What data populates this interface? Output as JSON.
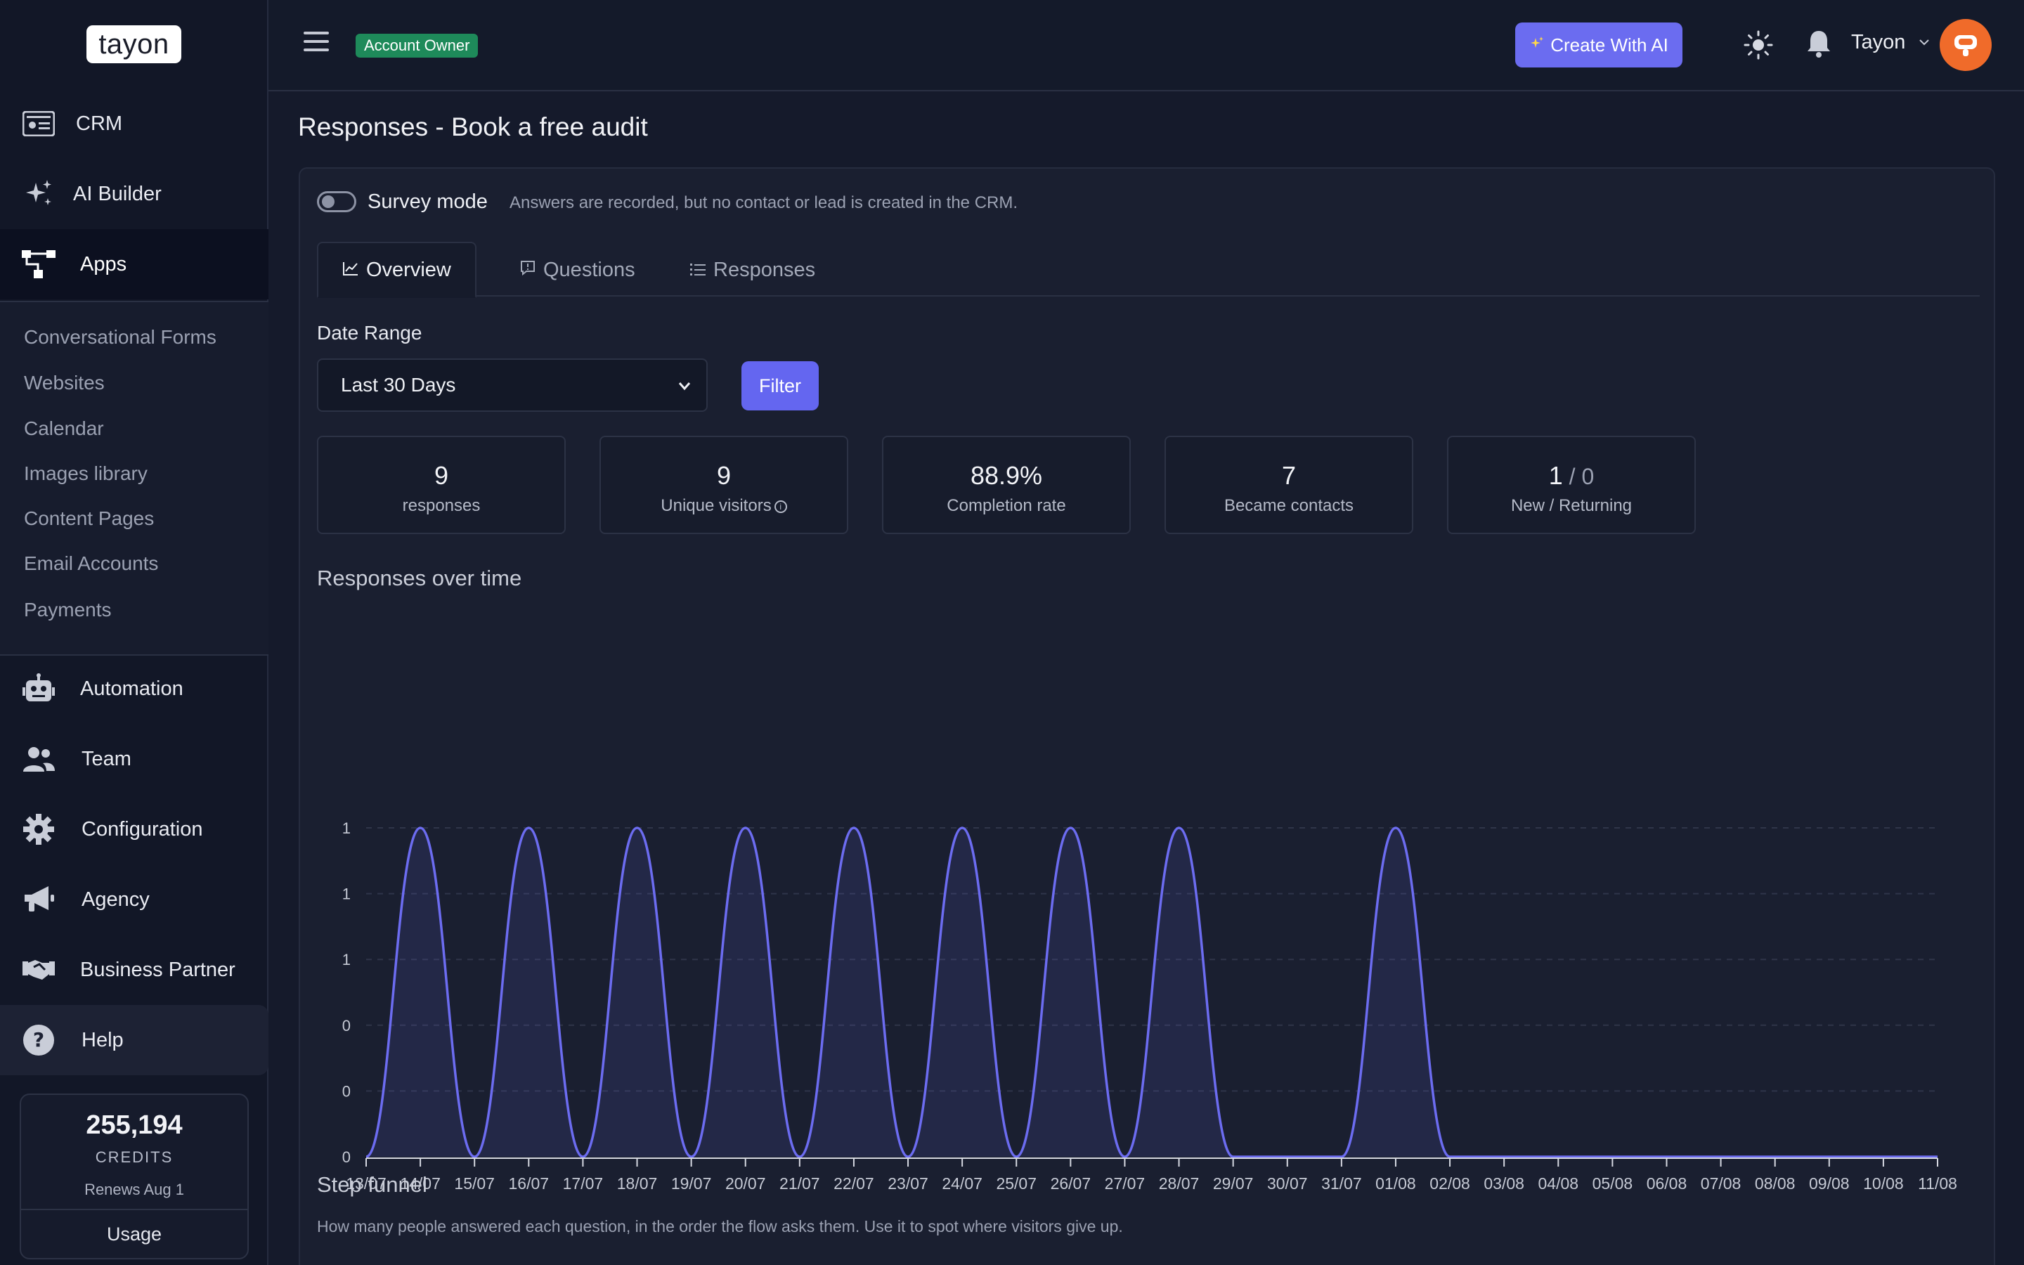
{
  "app": {
    "logo_text": "tayon"
  },
  "sidebar": {
    "items": [
      {
        "label": "CRM",
        "icon": "id-card-icon"
      },
      {
        "label": "AI Builder",
        "icon": "sparkles-icon"
      },
      {
        "label": "Apps",
        "icon": "sitemap-icon",
        "active": true
      },
      {
        "label": "Automation",
        "icon": "robot-icon"
      },
      {
        "label": "Team",
        "icon": "users-icon"
      },
      {
        "label": "Configuration",
        "icon": "gear-icon"
      },
      {
        "label": "Agency",
        "icon": "megaphone-icon"
      },
      {
        "label": "Business Partner",
        "icon": "handshake-icon"
      },
      {
        "label": "Help",
        "icon": "question-circle-icon"
      }
    ],
    "apps_submenu": [
      "Conversational Forms",
      "Websites",
      "Calendar",
      "Images library",
      "Content Pages",
      "Email Accounts",
      "Payments"
    ],
    "credits": {
      "value": "255,194",
      "label": "CREDITS",
      "renews": "Renews Aug 1",
      "usage_label": "Usage"
    }
  },
  "topbar": {
    "role_badge": "Account Owner",
    "create_ai_label": "Create With AI",
    "user_name": "Tayon"
  },
  "page": {
    "title": "Responses - Book a free audit",
    "survey_mode": {
      "label": "Survey mode",
      "help": "Answers are recorded, but no contact or lead is created in the CRM.",
      "enabled": false
    },
    "tabs": [
      "Overview",
      "Questions",
      "Responses"
    ],
    "date_range": {
      "label": "Date Range",
      "selected": "Last 30 Days",
      "filter_label": "Filter"
    },
    "stats": [
      {
        "value": "9",
        "label": "responses"
      },
      {
        "value": "9",
        "label": "Unique visitors"
      },
      {
        "value": "88.9%",
        "label": "Completion rate"
      },
      {
        "value": "7",
        "label": "Became contacts"
      },
      {
        "value": "1",
        "secondary": "0",
        "label": "New / Returning"
      }
    ],
    "chart_title": "Responses over time",
    "funnel_title": "Step funnel",
    "funnel_help": "How many people answered each question, in the order the flow asks them. Use it to spot where visitors give up."
  },
  "chart_data": {
    "type": "area",
    "title": "Responses over time",
    "categories": [
      "13/07",
      "14/07",
      "15/07",
      "16/07",
      "17/07",
      "18/07",
      "19/07",
      "20/07",
      "21/07",
      "22/07",
      "23/07",
      "24/07",
      "25/07",
      "26/07",
      "27/07",
      "28/07",
      "29/07",
      "30/07",
      "31/07",
      "01/08",
      "02/08",
      "03/08",
      "04/08",
      "05/08",
      "06/08",
      "07/08",
      "08/08",
      "09/08",
      "10/08",
      "11/08"
    ],
    "series": [
      {
        "values": [
          0,
          1,
          0,
          1,
          0,
          1,
          0,
          1,
          0,
          1,
          0,
          1,
          0,
          1,
          0,
          1,
          0,
          0,
          0,
          1,
          0,
          0,
          0,
          0,
          0,
          0,
          0,
          0,
          0,
          0
        ]
      }
    ],
    "y_tick_labels": [
      "0",
      "0",
      "0",
      "1",
      "1",
      "1"
    ],
    "ylim": [
      0,
      1
    ],
    "grid": true,
    "color": "#6c6cf0"
  }
}
